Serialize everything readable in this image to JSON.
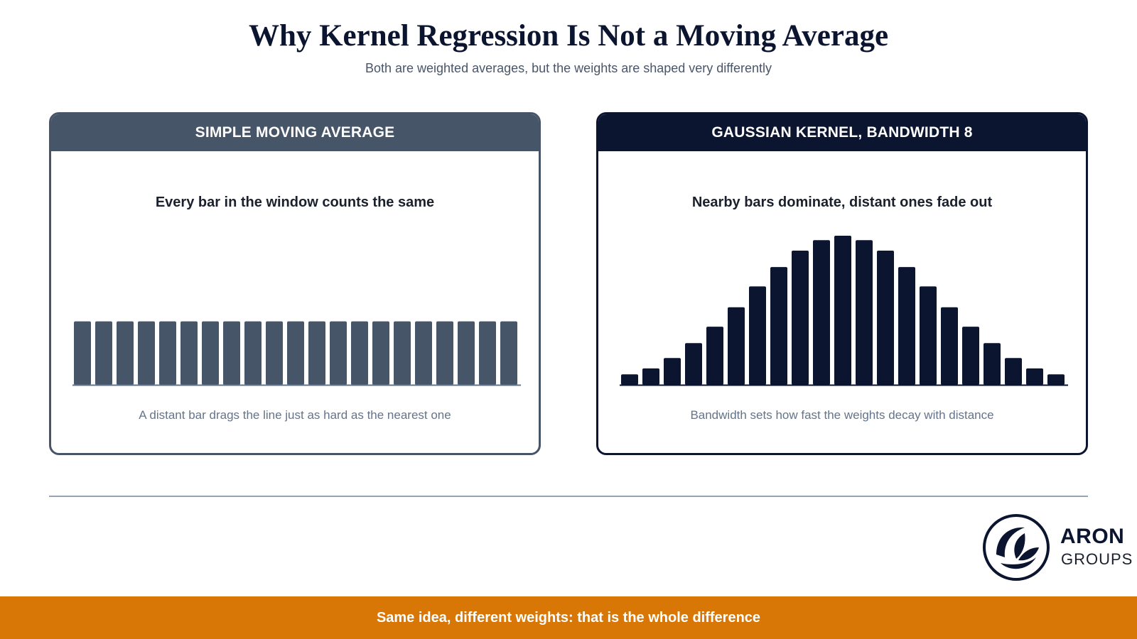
{
  "title": "Why Kernel Regression Is Not a Moving Average",
  "subtitle": "Both are weighted averages, but the weights are shaped very differently",
  "colors": {
    "sma": "#475569",
    "kernel": "#0b1530",
    "accent": "#d97706"
  },
  "panels": {
    "left": {
      "header": "SIMPLE MOVING AVERAGE",
      "caption": "Every bar in the window counts the same",
      "note": "A distant bar drags the line just as hard as the nearest one"
    },
    "right": {
      "header": "GAUSSIAN KERNEL, BANDWIDTH 8",
      "caption": "Nearby bars dominate, distant ones fade out",
      "note": "Bandwidth sets how fast the weights decay with distance"
    }
  },
  "chart_data": [
    {
      "type": "bar",
      "values": [
        1,
        1,
        1,
        1,
        1,
        1,
        1,
        1,
        1,
        1,
        1,
        1,
        1,
        1,
        1,
        1,
        1,
        1,
        1,
        1,
        1
      ],
      "ylim": [
        0,
        2.35
      ]
    },
    {
      "type": "bar",
      "values": [
        0.07,
        0.11,
        0.18,
        0.28,
        0.39,
        0.52,
        0.66,
        0.79,
        0.9,
        0.97,
        1.0,
        0.97,
        0.9,
        0.79,
        0.66,
        0.52,
        0.39,
        0.28,
        0.18,
        0.11,
        0.07
      ],
      "ylim": [
        0,
        1.0
      ]
    }
  ],
  "logo": {
    "word": "ARON",
    "sub": "GROUPS"
  },
  "footer": "Same idea, different weights: that is the whole difference"
}
